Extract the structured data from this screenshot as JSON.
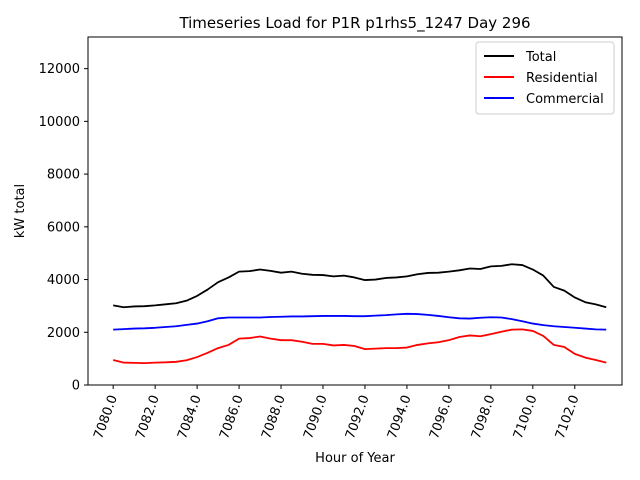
{
  "chart_data": {
    "type": "line",
    "title": "Timeseries Load for P1R p1rhs5_1247  Day 296",
    "xlabel": "Hour of Year",
    "ylabel": "kW total",
    "xlim": [
      7078.8,
      7104.25
    ],
    "ylim": [
      0,
      13200
    ],
    "xticks": [
      7080,
      7082,
      7084,
      7086,
      7088,
      7090,
      7092,
      7094,
      7096,
      7098,
      7100,
      7102
    ],
    "xtick_labels": [
      "7080.0",
      "7082.0",
      "7084.0",
      "7086.0",
      "7088.0",
      "7090.0",
      "7092.0",
      "7094.0",
      "7096.0",
      "7098.0",
      "7100.0",
      "7102.0"
    ],
    "yticks": [
      0,
      2000,
      4000,
      6000,
      8000,
      10000,
      12000
    ],
    "ytick_labels": [
      "0",
      "2000",
      "4000",
      "6000",
      "8000",
      "10000",
      "12000"
    ],
    "legend_position": "top-right",
    "series": [
      {
        "name": "Total",
        "color": "#000000",
        "points": [
          [
            7080.0,
            3020
          ],
          [
            7080.5,
            2950
          ],
          [
            7081.0,
            2980
          ],
          [
            7081.5,
            2990
          ],
          [
            7082.0,
            3020
          ],
          [
            7082.5,
            3060
          ],
          [
            7083.0,
            3100
          ],
          [
            7083.5,
            3200
          ],
          [
            7084.0,
            3380
          ],
          [
            7084.5,
            3620
          ],
          [
            7085.0,
            3900
          ],
          [
            7085.5,
            4080
          ],
          [
            7086.0,
            4300
          ],
          [
            7086.5,
            4320
          ],
          [
            7087.0,
            4380
          ],
          [
            7087.5,
            4330
          ],
          [
            7088.0,
            4260
          ],
          [
            7088.5,
            4300
          ],
          [
            7089.0,
            4220
          ],
          [
            7089.5,
            4180
          ],
          [
            7090.0,
            4170
          ],
          [
            7090.5,
            4120
          ],
          [
            7091.0,
            4150
          ],
          [
            7091.5,
            4080
          ],
          [
            7092.0,
            3980
          ],
          [
            7092.5,
            4000
          ],
          [
            7093.0,
            4060
          ],
          [
            7093.5,
            4080
          ],
          [
            7094.0,
            4120
          ],
          [
            7094.5,
            4200
          ],
          [
            7095.0,
            4250
          ],
          [
            7095.5,
            4260
          ],
          [
            7096.0,
            4300
          ],
          [
            7096.5,
            4350
          ],
          [
            7097.0,
            4420
          ],
          [
            7097.5,
            4400
          ],
          [
            7098.0,
            4500
          ],
          [
            7098.5,
            4520
          ],
          [
            7099.0,
            4580
          ],
          [
            7099.5,
            4550
          ],
          [
            7100.0,
            4380
          ],
          [
            7100.5,
            4150
          ],
          [
            7101.0,
            3720
          ],
          [
            7101.5,
            3580
          ],
          [
            7102.0,
            3320
          ],
          [
            7102.5,
            3140
          ],
          [
            7103.0,
            3060
          ],
          [
            7103.5,
            2950
          ]
        ]
      },
      {
        "name": "Residential",
        "color": "#ff0000",
        "points": [
          [
            7080.0,
            950
          ],
          [
            7080.5,
            850
          ],
          [
            7081.0,
            840
          ],
          [
            7081.5,
            830
          ],
          [
            7082.0,
            850
          ],
          [
            7082.5,
            860
          ],
          [
            7083.0,
            880
          ],
          [
            7083.5,
            940
          ],
          [
            7084.0,
            1060
          ],
          [
            7084.5,
            1220
          ],
          [
            7085.0,
            1400
          ],
          [
            7085.5,
            1520
          ],
          [
            7086.0,
            1760
          ],
          [
            7086.5,
            1780
          ],
          [
            7087.0,
            1840
          ],
          [
            7087.5,
            1760
          ],
          [
            7088.0,
            1700
          ],
          [
            7088.5,
            1700
          ],
          [
            7089.0,
            1640
          ],
          [
            7089.5,
            1560
          ],
          [
            7090.0,
            1560
          ],
          [
            7090.5,
            1500
          ],
          [
            7091.0,
            1520
          ],
          [
            7091.5,
            1480
          ],
          [
            7092.0,
            1360
          ],
          [
            7092.5,
            1380
          ],
          [
            7093.0,
            1400
          ],
          [
            7093.5,
            1400
          ],
          [
            7094.0,
            1420
          ],
          [
            7094.5,
            1520
          ],
          [
            7095.0,
            1580
          ],
          [
            7095.5,
            1620
          ],
          [
            7096.0,
            1700
          ],
          [
            7096.5,
            1820
          ],
          [
            7097.0,
            1880
          ],
          [
            7097.5,
            1850
          ],
          [
            7098.0,
            1930
          ],
          [
            7098.5,
            2020
          ],
          [
            7099.0,
            2100
          ],
          [
            7099.5,
            2110
          ],
          [
            7100.0,
            2050
          ],
          [
            7100.5,
            1860
          ],
          [
            7101.0,
            1520
          ],
          [
            7101.5,
            1440
          ],
          [
            7102.0,
            1180
          ],
          [
            7102.5,
            1040
          ],
          [
            7103.0,
            950
          ],
          [
            7103.5,
            850
          ]
        ]
      },
      {
        "name": "Commercial",
        "color": "#0000ff",
        "points": [
          [
            7080.0,
            2100
          ],
          [
            7080.5,
            2120
          ],
          [
            7081.0,
            2140
          ],
          [
            7081.5,
            2150
          ],
          [
            7082.0,
            2170
          ],
          [
            7082.5,
            2200
          ],
          [
            7083.0,
            2230
          ],
          [
            7083.5,
            2280
          ],
          [
            7084.0,
            2330
          ],
          [
            7084.5,
            2420
          ],
          [
            7085.0,
            2530
          ],
          [
            7085.5,
            2560
          ],
          [
            7086.0,
            2560
          ],
          [
            7086.5,
            2560
          ],
          [
            7087.0,
            2560
          ],
          [
            7087.5,
            2580
          ],
          [
            7088.0,
            2590
          ],
          [
            7088.5,
            2600
          ],
          [
            7089.0,
            2600
          ],
          [
            7089.5,
            2610
          ],
          [
            7090.0,
            2620
          ],
          [
            7090.5,
            2620
          ],
          [
            7091.0,
            2620
          ],
          [
            7091.5,
            2610
          ],
          [
            7092.0,
            2610
          ],
          [
            7092.5,
            2630
          ],
          [
            7093.0,
            2650
          ],
          [
            7093.5,
            2680
          ],
          [
            7094.0,
            2700
          ],
          [
            7094.5,
            2690
          ],
          [
            7095.0,
            2660
          ],
          [
            7095.5,
            2620
          ],
          [
            7096.0,
            2570
          ],
          [
            7096.5,
            2530
          ],
          [
            7097.0,
            2520
          ],
          [
            7097.5,
            2550
          ],
          [
            7098.0,
            2570
          ],
          [
            7098.5,
            2560
          ],
          [
            7099.0,
            2500
          ],
          [
            7099.5,
            2420
          ],
          [
            7100.0,
            2330
          ],
          [
            7100.5,
            2270
          ],
          [
            7101.0,
            2230
          ],
          [
            7101.5,
            2200
          ],
          [
            7102.0,
            2170
          ],
          [
            7102.5,
            2140
          ],
          [
            7103.0,
            2110
          ],
          [
            7103.5,
            2100
          ]
        ]
      }
    ]
  }
}
